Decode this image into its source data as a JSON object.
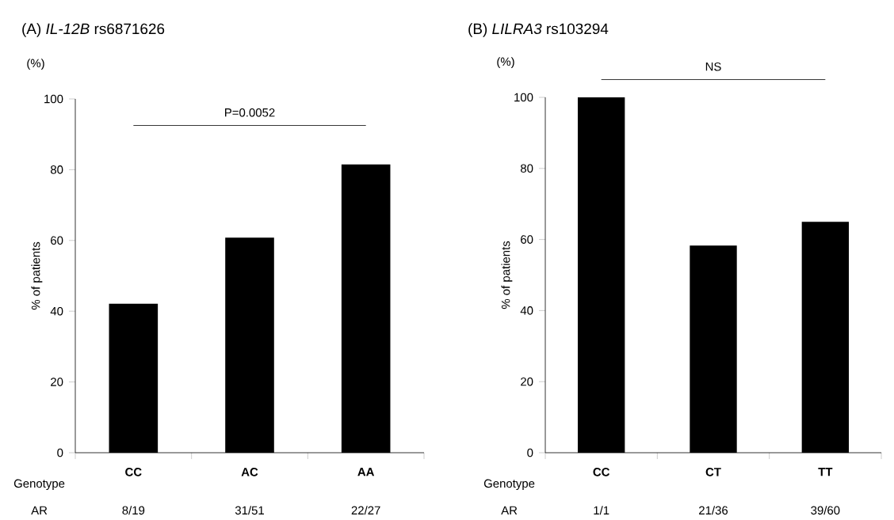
{
  "chart_data": [
    {
      "type": "bar",
      "title": "(A) *IL-12B* rs6871626",
      "xlabel": "Genotype",
      "ylabel": "% of patients",
      "categories": [
        "CC",
        "AC",
        "AA"
      ],
      "values": [
        42.1,
        60.8,
        81.5
      ],
      "color": "#000000",
      "ylim": [
        0,
        100
      ],
      "yticks": [
        0,
        20,
        40,
        60,
        80,
        100
      ],
      "grid": false,
      "annotations": [
        "(%)",
        "P=0.0052",
        "AR",
        "8/19",
        "31/51",
        "22/27"
      ]
    },
    {
      "type": "bar",
      "title": "(B) *LILRA3* rs103294",
      "xlabel": "Genotype",
      "ylabel": "% of patients",
      "categories": [
        "CC",
        "CT",
        "TT"
      ],
      "values": [
        100,
        58.3,
        65
      ],
      "color": "#000000",
      "ylim": [
        0,
        100
      ],
      "yticks": [
        0,
        20,
        40,
        60,
        80,
        100
      ],
      "grid": false,
      "annotations": [
        "(%)",
        "NS",
        "AR",
        "1/1",
        "21/36",
        "39/60"
      ]
    }
  ]
}
